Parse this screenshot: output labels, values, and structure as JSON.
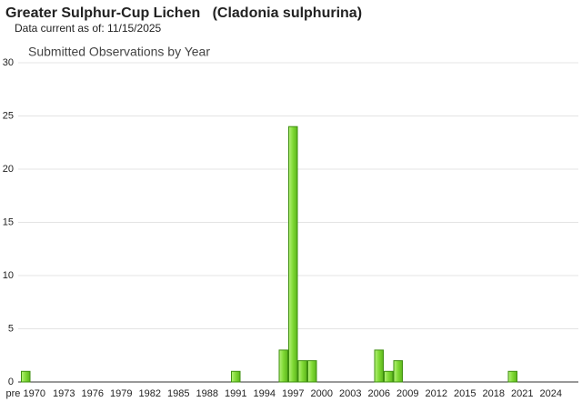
{
  "chart_data": {
    "type": "bar",
    "title": "Greater Sulphur-Cup Lichen   (Cladonia sulphurina)",
    "subtitle": "Data current as of: 11/15/2025",
    "chart_title": "Submitted Observations by Year",
    "categories": [
      "pre 1970",
      null,
      null,
      null,
      "1973",
      null,
      null,
      "1976",
      null,
      null,
      "1979",
      null,
      null,
      "1982",
      null,
      null,
      "1985",
      null,
      null,
      "1988",
      null,
      null,
      "1991",
      null,
      null,
      "1994",
      null,
      null,
      "1997",
      null,
      null,
      "2000",
      null,
      null,
      "2003",
      null,
      null,
      "2006",
      null,
      null,
      "2009",
      null,
      null,
      "2012",
      null,
      null,
      "2015",
      null,
      null,
      "2018",
      null,
      null,
      "2021",
      null,
      null,
      "2024",
      null
    ],
    "values": [
      1,
      0,
      0,
      0,
      0,
      0,
      0,
      0,
      0,
      0,
      0,
      0,
      0,
      0,
      0,
      0,
      0,
      0,
      0,
      0,
      0,
      0,
      1,
      0,
      0,
      0,
      0,
      3,
      24,
      2,
      2,
      0,
      0,
      0,
      0,
      0,
      0,
      3,
      1,
      2,
      0,
      0,
      0,
      0,
      0,
      0,
      0,
      0,
      0,
      0,
      0,
      1,
      0,
      0,
      0,
      0,
      0
    ],
    "color": "#80dd3a",
    "ylim": [
      0,
      30
    ],
    "yticks": [
      0,
      5,
      10,
      15,
      20,
      25,
      30
    ],
    "grid": true
  }
}
